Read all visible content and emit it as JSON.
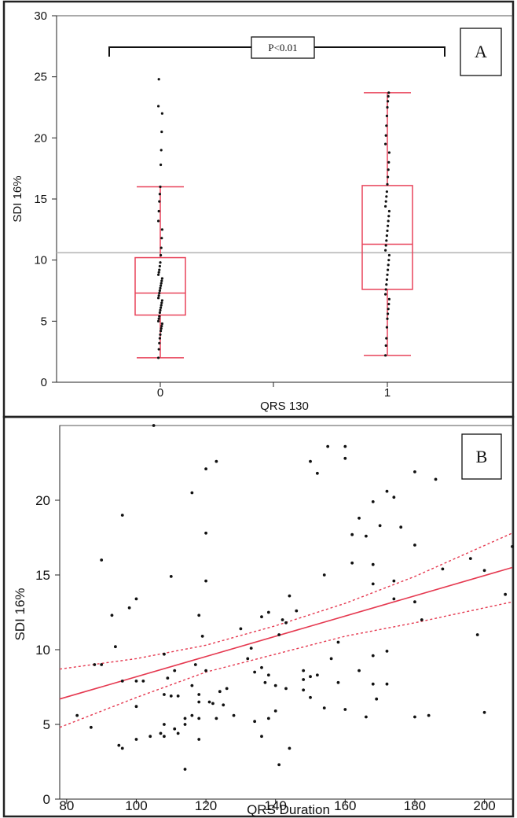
{
  "chart_data": [
    {
      "type": "box",
      "panel_label": "A",
      "xlabel": "QRS 130",
      "ylabel": "SDI 16%",
      "categories": [
        "0",
        "1"
      ],
      "ylim": [
        0,
        30
      ],
      "yticks": [
        0,
        5,
        10,
        15,
        20,
        25,
        30
      ],
      "annotation": "P<0.01",
      "reference_line": 10.6,
      "grid": false,
      "boxes": [
        {
          "category": "0",
          "min": 2.0,
          "q1": 5.5,
          "median": 7.3,
          "q3": 10.2,
          "max": 16.0,
          "points": [
            2.0,
            2.7,
            3.2,
            3.6,
            3.9,
            4.2,
            4.4,
            4.6,
            4.8,
            5.0,
            5.2,
            5.4,
            5.7,
            5.9,
            6.1,
            6.3,
            6.5,
            6.7,
            6.9,
            7.1,
            7.3,
            7.5,
            7.7,
            7.9,
            8.1,
            8.3,
            8.5,
            8.8,
            9.0,
            9.2,
            9.5,
            9.8,
            10.4,
            11.0,
            11.8,
            12.5,
            13.2,
            14.0,
            14.8,
            15.4,
            16.0,
            17.8,
            19.0,
            20.5,
            22.0,
            22.6,
            24.8
          ]
        },
        {
          "category": "1",
          "min": 2.2,
          "q1": 7.6,
          "median": 11.3,
          "q3": 16.1,
          "max": 23.7,
          "points": [
            2.2,
            3.0,
            3.6,
            4.5,
            5.2,
            5.6,
            6.0,
            6.4,
            6.8,
            7.2,
            7.6,
            8.0,
            8.4,
            8.8,
            9.2,
            9.6,
            10.0,
            10.4,
            10.8,
            11.2,
            11.6,
            12.0,
            12.4,
            12.8,
            13.2,
            13.6,
            14.0,
            14.4,
            14.8,
            15.2,
            15.6,
            16.2,
            16.8,
            17.4,
            18.0,
            18.8,
            19.5,
            20.2,
            21.0,
            21.8,
            22.5,
            23.0,
            23.4,
            23.7
          ]
        }
      ]
    },
    {
      "type": "scatter",
      "panel_label": "B",
      "xlabel": "QRS Duration",
      "ylabel": "SDI 16%",
      "xlim": [
        78,
        208
      ],
      "ylim": [
        0,
        25
      ],
      "xticks": [
        80,
        100,
        120,
        140,
        160,
        180,
        200
      ],
      "yticks": [
        0,
        5,
        10,
        15,
        20
      ],
      "fit_line": {
        "x": [
          78,
          208
        ],
        "y": [
          6.7,
          15.5
        ]
      },
      "confidence_band": {
        "upper": {
          "x": [
            78,
            100,
            120,
            140,
            160,
            180,
            208
          ],
          "y": [
            8.7,
            9.4,
            10.3,
            11.6,
            13.1,
            14.9,
            17.8
          ]
        },
        "lower": {
          "x": [
            78,
            100,
            120,
            140,
            160,
            180,
            208
          ],
          "y": [
            4.8,
            6.8,
            8.5,
            9.7,
            10.9,
            11.8,
            13.2
          ]
        }
      },
      "grid": false,
      "points": [
        {
          "x": 83,
          "y": 5.6
        },
        {
          "x": 87,
          "y": 4.8
        },
        {
          "x": 88,
          "y": 9.0
        },
        {
          "x": 90,
          "y": 16.0
        },
        {
          "x": 90,
          "y": 9.0
        },
        {
          "x": 93,
          "y": 12.3
        },
        {
          "x": 94,
          "y": 10.2
        },
        {
          "x": 95,
          "y": 3.6
        },
        {
          "x": 96,
          "y": 19.0
        },
        {
          "x": 96,
          "y": 3.4
        },
        {
          "x": 96,
          "y": 7.9
        },
        {
          "x": 98,
          "y": 12.8
        },
        {
          "x": 100,
          "y": 13.4
        },
        {
          "x": 100,
          "y": 7.9
        },
        {
          "x": 100,
          "y": 4.0
        },
        {
          "x": 100,
          "y": 6.2
        },
        {
          "x": 102,
          "y": 7.9
        },
        {
          "x": 104,
          "y": 4.2
        },
        {
          "x": 105,
          "y": 25.0
        },
        {
          "x": 107,
          "y": 4.4
        },
        {
          "x": 108,
          "y": 9.7
        },
        {
          "x": 108,
          "y": 5.0
        },
        {
          "x": 108,
          "y": 4.2
        },
        {
          "x": 108,
          "y": 7.0
        },
        {
          "x": 109,
          "y": 8.1
        },
        {
          "x": 110,
          "y": 14.9
        },
        {
          "x": 110,
          "y": 6.9
        },
        {
          "x": 111,
          "y": 8.6
        },
        {
          "x": 111,
          "y": 4.7
        },
        {
          "x": 112,
          "y": 6.9
        },
        {
          "x": 112,
          "y": 4.4
        },
        {
          "x": 114,
          "y": 2.0
        },
        {
          "x": 114,
          "y": 5.0
        },
        {
          "x": 114,
          "y": 5.4
        },
        {
          "x": 116,
          "y": 20.5
        },
        {
          "x": 116,
          "y": 7.6
        },
        {
          "x": 116,
          "y": 5.6
        },
        {
          "x": 117,
          "y": 9.0
        },
        {
          "x": 118,
          "y": 12.3
        },
        {
          "x": 118,
          "y": 5.4
        },
        {
          "x": 118,
          "y": 4.0
        },
        {
          "x": 118,
          "y": 6.5
        },
        {
          "x": 118,
          "y": 7.0
        },
        {
          "x": 119,
          "y": 10.9
        },
        {
          "x": 120,
          "y": 22.1
        },
        {
          "x": 120,
          "y": 17.8
        },
        {
          "x": 120,
          "y": 14.6
        },
        {
          "x": 120,
          "y": 8.6
        },
        {
          "x": 121,
          "y": 6.5
        },
        {
          "x": 122,
          "y": 6.4
        },
        {
          "x": 123,
          "y": 22.6
        },
        {
          "x": 123,
          "y": 5.4
        },
        {
          "x": 124,
          "y": 7.2
        },
        {
          "x": 125,
          "y": 6.3
        },
        {
          "x": 126,
          "y": 7.4
        },
        {
          "x": 128,
          "y": 5.6
        },
        {
          "x": 130,
          "y": 11.4
        },
        {
          "x": 132,
          "y": 9.4
        },
        {
          "x": 133,
          "y": 10.1
        },
        {
          "x": 134,
          "y": 8.5
        },
        {
          "x": 134,
          "y": 5.2
        },
        {
          "x": 136,
          "y": 12.2
        },
        {
          "x": 136,
          "y": 8.8
        },
        {
          "x": 136,
          "y": 4.2
        },
        {
          "x": 137,
          "y": 7.8
        },
        {
          "x": 138,
          "y": 12.5
        },
        {
          "x": 138,
          "y": 5.4
        },
        {
          "x": 138,
          "y": 8.3
        },
        {
          "x": 140,
          "y": 7.6
        },
        {
          "x": 140,
          "y": 5.9
        },
        {
          "x": 141,
          "y": 11.0
        },
        {
          "x": 141,
          "y": 2.3
        },
        {
          "x": 142,
          "y": 12.0
        },
        {
          "x": 143,
          "y": 11.8
        },
        {
          "x": 143,
          "y": 7.4
        },
        {
          "x": 144,
          "y": 13.6
        },
        {
          "x": 144,
          "y": 3.4
        },
        {
          "x": 146,
          "y": 12.6
        },
        {
          "x": 148,
          "y": 8.6
        },
        {
          "x": 148,
          "y": 8.0
        },
        {
          "x": 148,
          "y": 7.3
        },
        {
          "x": 150,
          "y": 22.6
        },
        {
          "x": 150,
          "y": 8.2
        },
        {
          "x": 150,
          "y": 6.8
        },
        {
          "x": 152,
          "y": 21.8
        },
        {
          "x": 152,
          "y": 8.3
        },
        {
          "x": 154,
          "y": 15.0
        },
        {
          "x": 154,
          "y": 6.1
        },
        {
          "x": 155,
          "y": 23.6
        },
        {
          "x": 156,
          "y": 9.4
        },
        {
          "x": 158,
          "y": 10.5
        },
        {
          "x": 158,
          "y": 7.8
        },
        {
          "x": 160,
          "y": 23.6
        },
        {
          "x": 160,
          "y": 22.8
        },
        {
          "x": 160,
          "y": 6.0
        },
        {
          "x": 162,
          "y": 17.7
        },
        {
          "x": 162,
          "y": 15.8
        },
        {
          "x": 164,
          "y": 18.8
        },
        {
          "x": 164,
          "y": 8.6
        },
        {
          "x": 166,
          "y": 17.6
        },
        {
          "x": 166,
          "y": 5.5
        },
        {
          "x": 168,
          "y": 19.9
        },
        {
          "x": 168,
          "y": 15.7
        },
        {
          "x": 168,
          "y": 14.4
        },
        {
          "x": 168,
          "y": 9.6
        },
        {
          "x": 168,
          "y": 7.7
        },
        {
          "x": 169,
          "y": 6.7
        },
        {
          "x": 170,
          "y": 18.3
        },
        {
          "x": 172,
          "y": 20.6
        },
        {
          "x": 172,
          "y": 9.9
        },
        {
          "x": 172,
          "y": 7.7
        },
        {
          "x": 174,
          "y": 20.2
        },
        {
          "x": 174,
          "y": 14.6
        },
        {
          "x": 174,
          "y": 13.4
        },
        {
          "x": 176,
          "y": 18.2
        },
        {
          "x": 180,
          "y": 21.9
        },
        {
          "x": 180,
          "y": 17.0
        },
        {
          "x": 180,
          "y": 13.2
        },
        {
          "x": 180,
          "y": 5.5
        },
        {
          "x": 182,
          "y": 12.0
        },
        {
          "x": 184,
          "y": 5.6
        },
        {
          "x": 186,
          "y": 21.4
        },
        {
          "x": 188,
          "y": 15.4
        },
        {
          "x": 196,
          "y": 16.1
        },
        {
          "x": 198,
          "y": 11.0
        },
        {
          "x": 200,
          "y": 15.3
        },
        {
          "x": 200,
          "y": 5.8
        },
        {
          "x": 206,
          "y": 13.7
        },
        {
          "x": 208,
          "y": 16.9
        }
      ]
    }
  ],
  "colors": {
    "box_stroke": "#e8435a",
    "fit_line": "#e53950",
    "points": "#111111",
    "reference_line": "#b7b7b7",
    "frame": "#222222"
  }
}
